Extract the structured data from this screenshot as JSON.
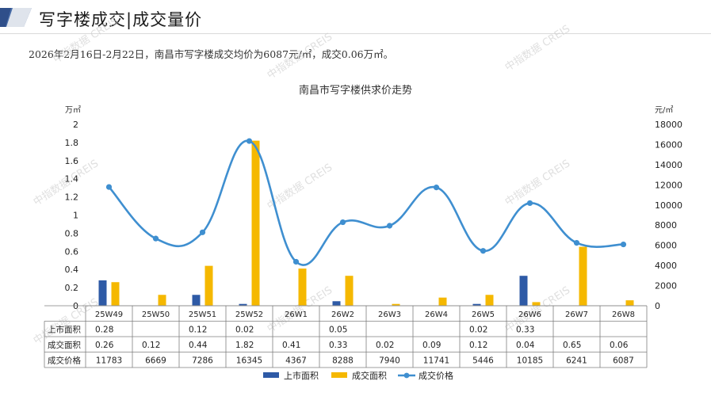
{
  "header": {
    "title": "写字楼成交|成交量价",
    "summary": "2026年2月16日-2月22日，南昌市写字楼成交均价为6087元/㎡，成交0.06万㎡。",
    "accent_color": "#4a6ea9"
  },
  "watermark": "中指数据 CREIS",
  "chart_data": {
    "type": "bar",
    "title": "南昌市写字楼供求价走势",
    "y_left_unit": "万㎡",
    "y_right_unit": "元/㎡",
    "ylim_left": [
      0,
      2
    ],
    "yticks_left": [
      "0",
      "0.2",
      "0.4",
      "0.6",
      "0.8",
      "1",
      "1.2",
      "1.4",
      "1.6",
      "1.8",
      "2"
    ],
    "ylim_right": [
      0,
      18000
    ],
    "yticks_right": [
      "0",
      "2000",
      "4000",
      "6000",
      "8000",
      "10000",
      "12000",
      "14000",
      "16000",
      "18000"
    ],
    "categories": [
      "25W49",
      "25W50",
      "25W51",
      "25W52",
      "26W1",
      "26W2",
      "26W3",
      "26W4",
      "26W5",
      "26W6",
      "26W7",
      "26W8"
    ],
    "series": [
      {
        "name": "上市面积",
        "type": "bar",
        "axis": "left",
        "color": "#2e5aa6",
        "values": [
          0.28,
          null,
          0.12,
          0.02,
          null,
          0.05,
          null,
          null,
          0.02,
          0.33,
          null,
          null
        ],
        "labels": [
          "0.28",
          "",
          "0.12",
          "0.02",
          "",
          "0.05",
          "",
          "",
          "0.02",
          "0.33",
          "",
          ""
        ]
      },
      {
        "name": "成交面积",
        "type": "bar",
        "axis": "left",
        "color": "#f5b800",
        "values": [
          0.26,
          0.12,
          0.44,
          1.82,
          0.41,
          0.33,
          0.02,
          0.09,
          0.12,
          0.04,
          0.65,
          0.06
        ],
        "labels": [
          "0.26",
          "0.12",
          "0.44",
          "1.82",
          "0.41",
          "0.33",
          "0.02",
          "0.09",
          "0.12",
          "0.04",
          "0.65",
          "0.06"
        ]
      },
      {
        "name": "成交价格",
        "type": "line",
        "axis": "right",
        "color": "#3f8fd0",
        "values": [
          11783,
          6669,
          7286,
          16345,
          4367,
          8288,
          7940,
          11741,
          5446,
          10185,
          6241,
          6087
        ],
        "labels": [
          "11783",
          "6669",
          "7286",
          "16345",
          "4367",
          "8288",
          "7940",
          "11741",
          "5446",
          "10185",
          "6241",
          "6087"
        ]
      }
    ],
    "legend_position": "bottom"
  }
}
